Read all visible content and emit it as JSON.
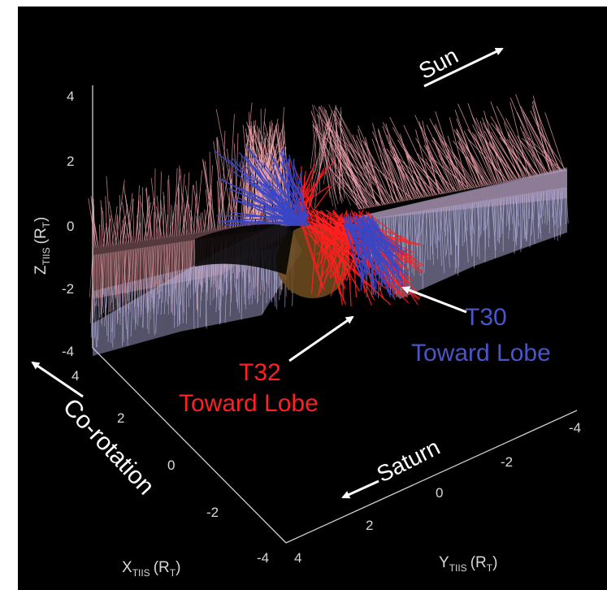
{
  "chart_data": {
    "type": "3d-vector-field",
    "axes": {
      "x": {
        "label": "X",
        "subscript": "TIIS",
        "unit": "(R",
        "unit_sub": "T",
        "unit_close": ")",
        "ticks": [
          "4",
          "2",
          "0",
          "-2",
          "-4"
        ],
        "range": [
          -4,
          4
        ]
      },
      "y": {
        "label": "Y",
        "subscript": "TIIS",
        "unit": "(R",
        "unit_sub": "T",
        "unit_close": ")",
        "ticks": [
          "4",
          "2",
          "0",
          "-2",
          "-4"
        ],
        "range": [
          -4,
          4
        ]
      },
      "z": {
        "label": "Z",
        "subscript": "TIIS",
        "unit": "(R",
        "unit_sub": "T",
        "unit_close": ")",
        "ticks": [
          "4",
          "2",
          "0",
          "-2",
          "-4"
        ],
        "range": [
          -4,
          4
        ]
      }
    },
    "annotations": {
      "sun": "Sun",
      "corotation": "Co-rotation",
      "saturn": "Saturn",
      "t32": {
        "id": "T32",
        "text": "Toward Lobe"
      },
      "t30": {
        "id": "T30",
        "text": "Toward Lobe"
      }
    },
    "colors": {
      "background": "#000000",
      "pink_field": "#f4a6b0",
      "lavender_field": "#b9b6e6",
      "t32_red": "#ff2020",
      "t30_blue": "#3a46c4",
      "titan": "#6b4a1e",
      "annotation": "#ffffff"
    }
  }
}
